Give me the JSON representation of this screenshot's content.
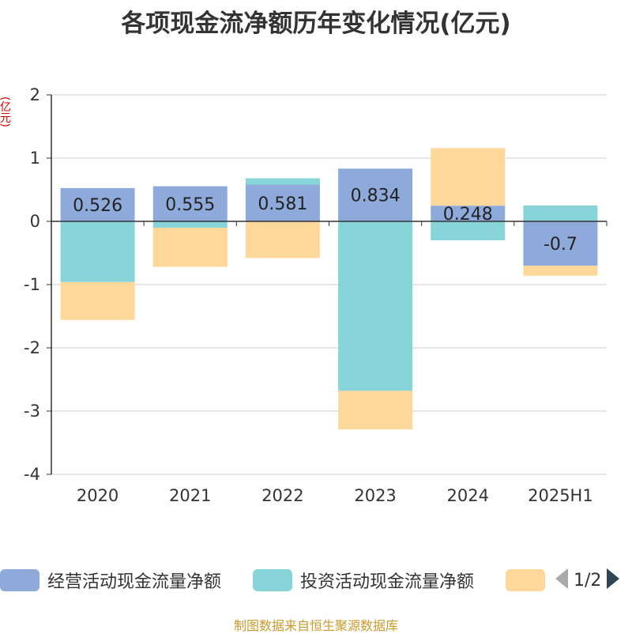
{
  "title": "各项现金流净额历年变化情况(亿元)",
  "footer": "制图数据来自恒生聚源数据库",
  "legend": {
    "items": [
      {
        "label": "经营活动现金流量净额",
        "color": "#8eaadb"
      },
      {
        "label": "投资活动现金流量净额",
        "color": "#87d5d8"
      },
      {
        "label": "",
        "color": "#fdd89a"
      }
    ],
    "page_indicator": "1/2",
    "prev_icon": "triangle-left-icon",
    "next_icon": "triangle-right-icon"
  },
  "chart_data": {
    "type": "bar",
    "stacked": true,
    "ylabel": "(亿元)",
    "ylim": [
      -4,
      2
    ],
    "yticks": [
      2,
      1,
      0,
      -1,
      -2,
      -3,
      -4
    ],
    "grid": true,
    "legend_position": "bottom",
    "categories": [
      "2020",
      "2021",
      "2022",
      "2023",
      "2024",
      "2025H1"
    ],
    "series": [
      {
        "name": "经营活动现金流量净额",
        "color": "#8eaadb",
        "values": [
          0.526,
          0.555,
          0.581,
          0.834,
          0.248,
          -0.7
        ],
        "labels": [
          "0.526",
          "0.555",
          "0.581",
          "0.834",
          "0.248",
          "-0.7"
        ]
      },
      {
        "name": "投资活动现金流量净额",
        "color": "#87d5d8",
        "values": [
          -0.96,
          -0.1,
          0.1,
          -2.68,
          -0.3,
          0.25
        ]
      },
      {
        "color": "#fdd89a",
        "values": [
          -0.6,
          -0.62,
          -0.58,
          -0.61,
          0.91,
          -0.16
        ]
      }
    ]
  }
}
